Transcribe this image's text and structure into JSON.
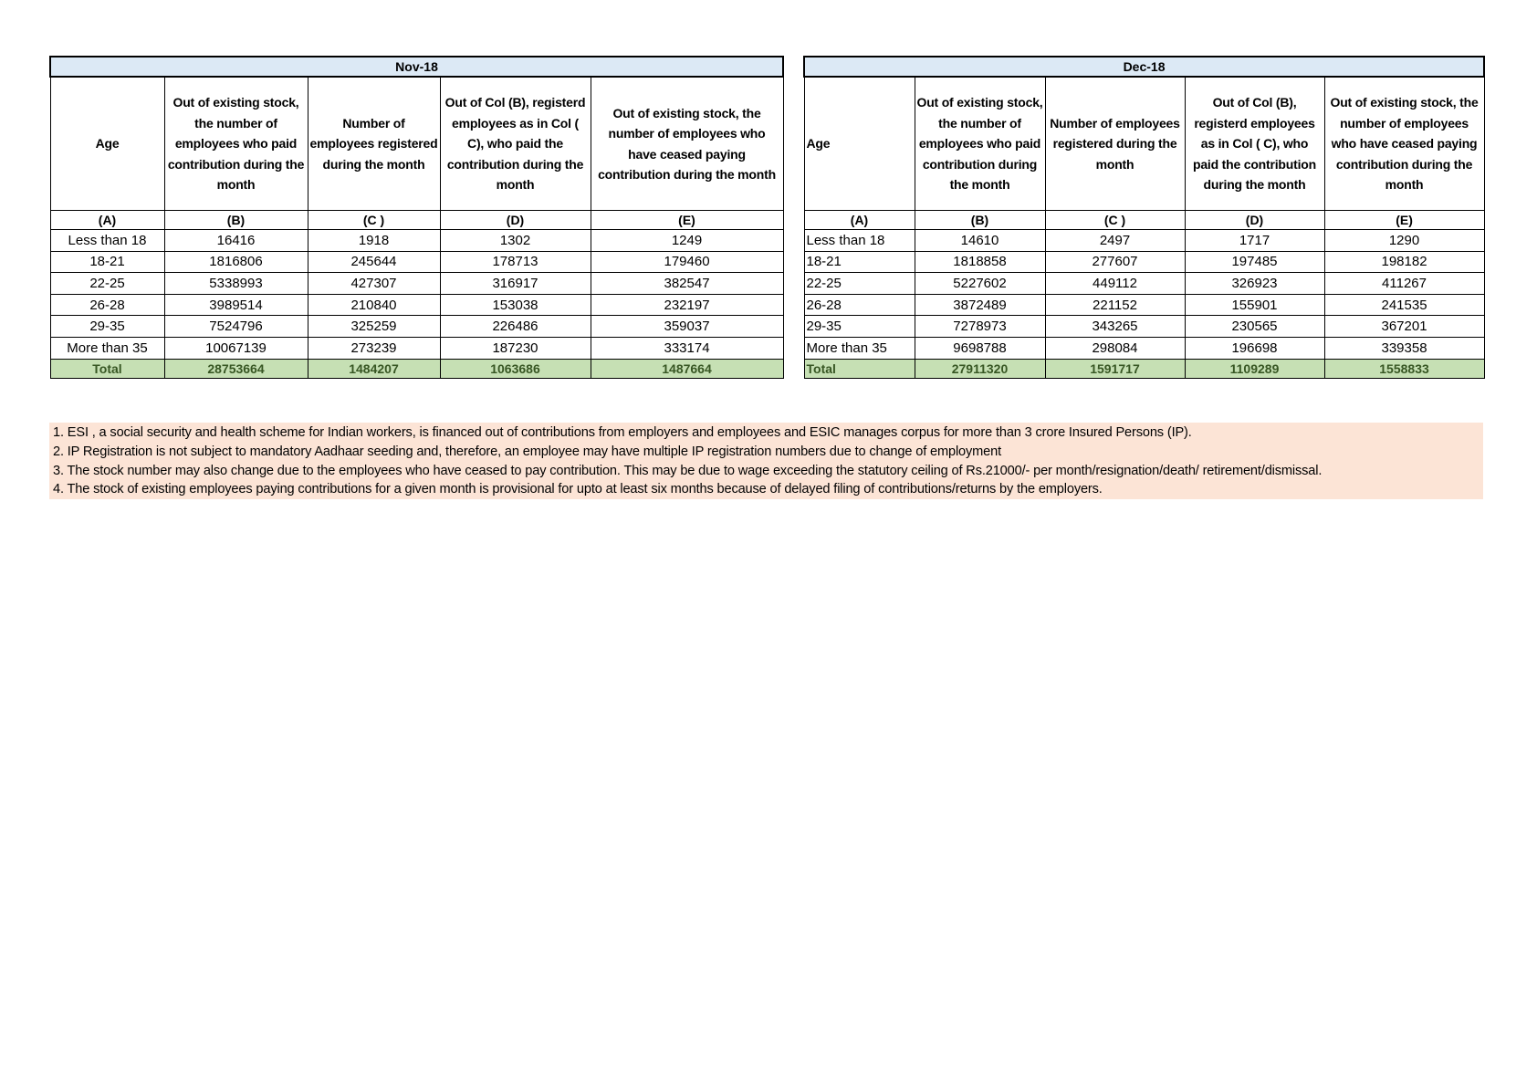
{
  "tables": [
    {
      "title": "Nov-18",
      "headers": [
        "Age",
        "Out of existing stock, the number of employees who paid contribution during the month",
        "Number of employees registered during the month",
        "Out of Col (B), registerd employees as in Col ( C), who paid the contribution during the month",
        "Out of existing stock, the number of  employees  who have ceased paying contribution during the month"
      ],
      "letters": [
        "(A)",
        "(B)",
        "(C )",
        "(D)",
        "(E)"
      ],
      "rows": [
        [
          "Less than 18",
          "16416",
          "1918",
          "1302",
          "1249"
        ],
        [
          "18-21",
          "1816806",
          "245644",
          "178713",
          "179460"
        ],
        [
          "22-25",
          "5338993",
          "427307",
          "316917",
          "382547"
        ],
        [
          "26-28",
          "3989514",
          "210840",
          "153038",
          "232197"
        ],
        [
          "29-35",
          "7524796",
          "325259",
          "226486",
          "359037"
        ],
        [
          "More than 35",
          "10067139",
          "273239",
          "187230",
          "333174"
        ]
      ],
      "total": [
        "Total",
        "28753664",
        "1484207",
        "1063686",
        "1487664"
      ]
    },
    {
      "title": "Dec-18",
      "headers": [
        "Age",
        "Out of existing stock, the number of employees who paid contribution during the month",
        "Number of employees registered during the month",
        "Out of Col (B), registerd employees as in Col ( C), who paid the contribution during the month",
        "Out of existing stock, the number of employees  who have ceased paying contribution during the month"
      ],
      "letters": [
        "(A)",
        "(B)",
        "(C )",
        "(D)",
        "(E)"
      ],
      "rows": [
        [
          "Less than 18",
          "14610",
          "2497",
          "1717",
          "1290"
        ],
        [
          "18-21",
          "1818858",
          "277607",
          "197485",
          "198182"
        ],
        [
          "22-25",
          "5227602",
          "449112",
          "326923",
          "411267"
        ],
        [
          "26-28",
          "3872489",
          "221152",
          "155901",
          "241535"
        ],
        [
          "29-35",
          "7278973",
          "343265",
          "230565",
          "367201"
        ],
        [
          "More than 35",
          "9698788",
          "298084",
          "196698",
          "339358"
        ]
      ],
      "total": [
        "Total",
        "27911320",
        "1591717",
        "1109289",
        "1558833"
      ]
    }
  ],
  "notes": [
    "1. ESI , a social security and health scheme for Indian workers, is financed out of contributions from employers and employees and ESIC manages corpus for more than 3 crore Insured Persons (IP).",
    "2. IP Registration is not subject to mandatory Aadhaar seeding and, therefore, an employee may have multiple IP registration numbers due to change of employment",
    "3. The stock number may also change due to the employees who have ceased to pay contribution. This may  be due to wage exceeding the statutory ceiling of  Rs.21000/- per month/resignation/death/ retirement/dismissal.",
    "4. The stock of existing employees paying contributions for a given month is provisional for upto at least six months because of delayed filing of contributions/returns by the employers."
  ],
  "colors": {
    "title_bg": "#dce9f5",
    "total_bg": "#c6e0b4",
    "total_text": "#375623",
    "notes_bg": "#fce4d6"
  }
}
